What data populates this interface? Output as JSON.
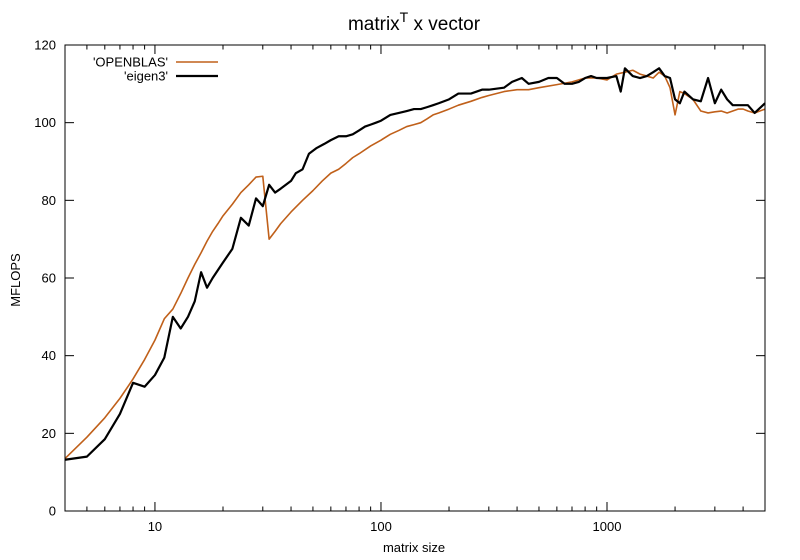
{
  "chart_data": {
    "type": "line",
    "title_base": "matrix",
    "title_sup": "T",
    "title_rest": " x vector",
    "xlabel": "matrix size",
    "ylabel": "MFLOPS",
    "x_scale": "log",
    "xlim": [
      4,
      5000
    ],
    "ylim": [
      0,
      120
    ],
    "x_ticks": [
      10,
      100,
      1000
    ],
    "y_ticks": [
      0,
      20,
      40,
      60,
      80,
      100,
      120
    ],
    "grid": false,
    "legend_position": "top-left",
    "series": [
      {
        "name": "'OPENBLAS'",
        "color": "#c0601a",
        "width": 1.6,
        "points": [
          [
            4,
            13.5
          ],
          [
            5,
            19
          ],
          [
            6,
            24
          ],
          [
            7,
            29
          ],
          [
            8,
            34
          ],
          [
            9,
            39
          ],
          [
            10,
            44
          ],
          [
            11,
            49.5
          ],
          [
            12,
            52
          ],
          [
            13,
            56
          ],
          [
            14,
            60
          ],
          [
            15,
            63.5
          ],
          [
            16,
            66.5
          ],
          [
            17,
            69.5
          ],
          [
            18,
            72
          ],
          [
            19,
            74
          ],
          [
            20,
            76
          ],
          [
            22,
            79
          ],
          [
            24,
            82
          ],
          [
            26,
            84
          ],
          [
            28,
            86
          ],
          [
            30,
            86.2
          ],
          [
            32,
            70
          ],
          [
            34,
            72
          ],
          [
            36,
            74
          ],
          [
            40,
            77
          ],
          [
            45,
            80
          ],
          [
            50,
            82.5
          ],
          [
            55,
            85
          ],
          [
            60,
            87
          ],
          [
            65,
            88
          ],
          [
            70,
            89.5
          ],
          [
            75,
            91
          ],
          [
            80,
            92
          ],
          [
            90,
            94
          ],
          [
            100,
            95.5
          ],
          [
            110,
            97
          ],
          [
            120,
            98
          ],
          [
            130,
            99
          ],
          [
            140,
            99.5
          ],
          [
            150,
            100
          ],
          [
            160,
            101
          ],
          [
            170,
            102
          ],
          [
            180,
            102.5
          ],
          [
            200,
            103.5
          ],
          [
            220,
            104.5
          ],
          [
            250,
            105.5
          ],
          [
            280,
            106.5
          ],
          [
            300,
            107
          ],
          [
            350,
            108
          ],
          [
            400,
            108.5
          ],
          [
            450,
            108.5
          ],
          [
            500,
            109
          ],
          [
            600,
            109.8
          ],
          [
            700,
            110.5
          ],
          [
            800,
            111.5
          ],
          [
            900,
            111.5
          ],
          [
            1000,
            111
          ],
          [
            1100,
            112.5
          ],
          [
            1200,
            113
          ],
          [
            1300,
            113.5
          ],
          [
            1400,
            112.5
          ],
          [
            1500,
            112
          ],
          [
            1600,
            111.5
          ],
          [
            1700,
            113
          ],
          [
            1800,
            112
          ],
          [
            1900,
            109
          ],
          [
            2000,
            102
          ],
          [
            2100,
            108
          ],
          [
            2200,
            107.5
          ],
          [
            2400,
            106
          ],
          [
            2600,
            103
          ],
          [
            2800,
            102.5
          ],
          [
            3000,
            102.8
          ],
          [
            3200,
            103
          ],
          [
            3400,
            102.5
          ],
          [
            3600,
            103
          ],
          [
            3800,
            103.5
          ],
          [
            4000,
            103.5
          ],
          [
            4200,
            103
          ],
          [
            4500,
            102.5
          ],
          [
            5000,
            103.5
          ]
        ]
      },
      {
        "name": "'eigen3'",
        "color": "#000000",
        "width": 2.2,
        "points": [
          [
            4,
            13.2
          ],
          [
            5,
            14
          ],
          [
            6,
            18.5
          ],
          [
            7,
            25
          ],
          [
            8,
            33
          ],
          [
            9,
            32
          ],
          [
            10,
            35
          ],
          [
            11,
            39.5
          ],
          [
            12,
            50
          ],
          [
            13,
            47
          ],
          [
            14,
            50
          ],
          [
            15,
            54
          ],
          [
            16,
            61.5
          ],
          [
            17,
            57.5
          ],
          [
            18,
            60
          ],
          [
            20,
            64
          ],
          [
            22,
            67.5
          ],
          [
            24,
            75.5
          ],
          [
            26,
            73.5
          ],
          [
            28,
            80.5
          ],
          [
            30,
            78.5
          ],
          [
            32,
            84
          ],
          [
            34,
            82
          ],
          [
            36,
            83
          ],
          [
            40,
            85
          ],
          [
            42,
            87
          ],
          [
            45,
            88
          ],
          [
            48,
            92
          ],
          [
            52,
            93.5
          ],
          [
            56,
            94.5
          ],
          [
            60,
            95.5
          ],
          [
            65,
            96.5
          ],
          [
            70,
            96.5
          ],
          [
            75,
            97
          ],
          [
            80,
            98
          ],
          [
            85,
            99
          ],
          [
            90,
            99.5
          ],
          [
            95,
            100
          ],
          [
            100,
            100.5
          ],
          [
            110,
            102
          ],
          [
            120,
            102.5
          ],
          [
            130,
            103
          ],
          [
            140,
            103.5
          ],
          [
            150,
            103.5
          ],
          [
            160,
            104
          ],
          [
            170,
            104.5
          ],
          [
            180,
            105
          ],
          [
            200,
            106
          ],
          [
            220,
            107.5
          ],
          [
            250,
            107.5
          ],
          [
            280,
            108.5
          ],
          [
            300,
            108.5
          ],
          [
            350,
            109
          ],
          [
            380,
            110.5
          ],
          [
            420,
            111.5
          ],
          [
            450,
            110
          ],
          [
            500,
            110.5
          ],
          [
            550,
            111.5
          ],
          [
            600,
            111.5
          ],
          [
            650,
            110
          ],
          [
            700,
            110
          ],
          [
            750,
            110.5
          ],
          [
            800,
            111.5
          ],
          [
            850,
            112
          ],
          [
            900,
            111.5
          ],
          [
            1000,
            111.5
          ],
          [
            1100,
            112
          ],
          [
            1150,
            108
          ],
          [
            1200,
            114
          ],
          [
            1300,
            112
          ],
          [
            1400,
            111.5
          ],
          [
            1500,
            112
          ],
          [
            1600,
            113
          ],
          [
            1700,
            114
          ],
          [
            1800,
            112
          ],
          [
            1900,
            111.5
          ],
          [
            2000,
            106
          ],
          [
            2100,
            105
          ],
          [
            2200,
            108
          ],
          [
            2400,
            106
          ],
          [
            2600,
            105.5
          ],
          [
            2800,
            111.5
          ],
          [
            3000,
            105
          ],
          [
            3200,
            108.5
          ],
          [
            3400,
            106
          ],
          [
            3600,
            104.5
          ],
          [
            3800,
            104.5
          ],
          [
            4000,
            104.5
          ],
          [
            4200,
            104.5
          ],
          [
            4500,
            102.5
          ],
          [
            5000,
            105
          ]
        ]
      }
    ]
  }
}
